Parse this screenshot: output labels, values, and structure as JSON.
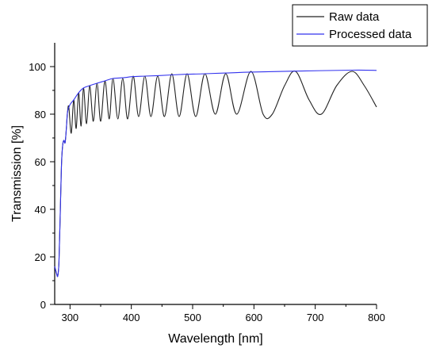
{
  "chart_data": {
    "type": "line",
    "xlabel": "Wavelength [nm]",
    "ylabel": "Transmission [%]",
    "xlim": [
      275,
      800
    ],
    "ylim": [
      0,
      110
    ],
    "x_ticks": [
      300,
      400,
      500,
      600,
      700,
      800
    ],
    "x_minor_ticks": [
      350,
      450,
      550,
      650,
      750
    ],
    "y_ticks": [
      0,
      20,
      40,
      60,
      80,
      100
    ],
    "y_minor_ticks": [
      10,
      30,
      50,
      70,
      90
    ],
    "grid": false,
    "legend": "top-right",
    "series": [
      {
        "name": "Raw data",
        "color": "#222222",
        "x": [
          275,
          278,
          280,
          282,
          284,
          286,
          288,
          290,
          292,
          294,
          296,
          298,
          302,
          306,
          310,
          314,
          318,
          322,
          327,
          332,
          338,
          344,
          350,
          357,
          364,
          370,
          378,
          386,
          394,
          403,
          412,
          422,
          432,
          443,
          454,
          466,
          478,
          491,
          505,
          520,
          537,
          554,
          572,
          595,
          615,
          630,
          650,
          668,
          690,
          710,
          735,
          760,
          780,
          800
        ],
        "y": [
          16,
          13,
          12,
          18,
          38,
          58,
          67,
          69,
          68,
          74,
          81,
          83,
          72,
          86,
          74,
          89,
          75,
          91,
          76,
          92,
          77,
          93,
          77,
          94,
          78,
          95,
          78,
          95,
          78,
          96,
          79,
          96,
          79,
          96,
          79,
          97,
          79,
          97,
          79,
          97,
          80,
          97,
          80,
          98,
          80,
          80,
          92,
          98,
          86,
          80,
          92,
          98,
          92,
          83
        ]
      },
      {
        "name": "Processed data",
        "color": "#3333ee",
        "x": [
          275,
          278,
          280,
          282,
          284,
          286,
          288,
          290,
          292,
          294,
          296,
          300,
          306,
          314,
          322,
          332,
          344,
          357,
          370,
          386,
          403,
          422,
          443,
          466,
          491,
          520,
          554,
          595,
          668,
          760,
          800
        ],
        "y": [
          16,
          13,
          12,
          18,
          38,
          58,
          67,
          69,
          68,
          74,
          81,
          84,
          86,
          89,
          91,
          92,
          93,
          94,
          95,
          95.3,
          95.8,
          96,
          96.2,
          96.5,
          96.8,
          97,
          97.3,
          97.7,
          98.1,
          98.5,
          98.4
        ]
      }
    ]
  }
}
